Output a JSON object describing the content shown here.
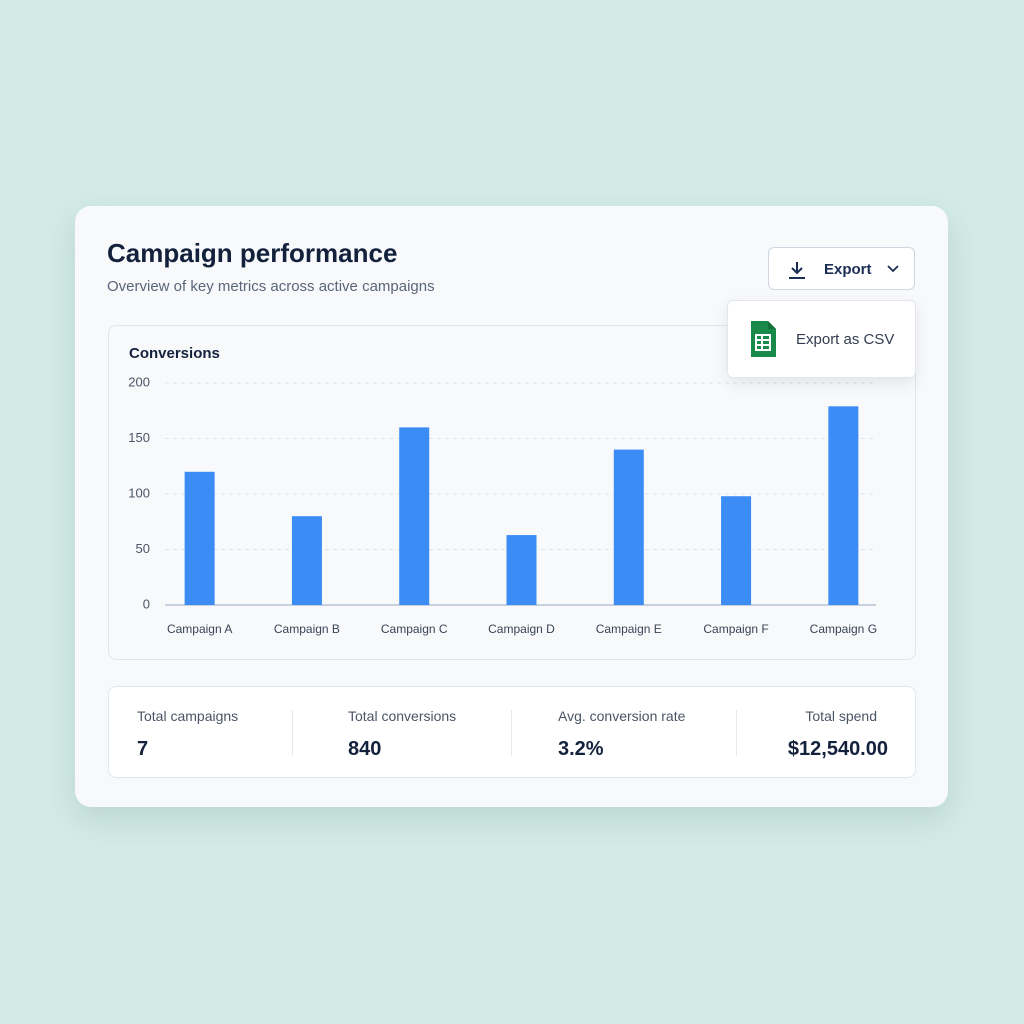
{
  "header": {
    "title": "Campaign performance",
    "subtitle": "Overview of key metrics across active campaigns"
  },
  "export": {
    "button": "Export",
    "menu_item": "Export as CSV"
  },
  "chart_data": {
    "type": "bar",
    "title": "Conversions",
    "categories": [
      "Campaign A",
      "Campaign B",
      "Campaign C",
      "Campaign D",
      "Campaign E",
      "Campaign F",
      "Campaign G"
    ],
    "values": [
      120,
      80,
      160,
      63,
      140,
      98,
      179
    ],
    "color": "#3b8cf5",
    "ylim": [
      0,
      200
    ],
    "yticks": [
      0,
      50,
      100,
      150,
      200
    ],
    "grid": true
  },
  "stats": [
    {
      "label": "Total campaigns",
      "value": "7"
    },
    {
      "label": "Total conversions",
      "value": "840"
    },
    {
      "label": "Avg. conversion rate",
      "value": "3.2%"
    },
    {
      "label": "Total spend",
      "value": "$12,540.00"
    }
  ]
}
